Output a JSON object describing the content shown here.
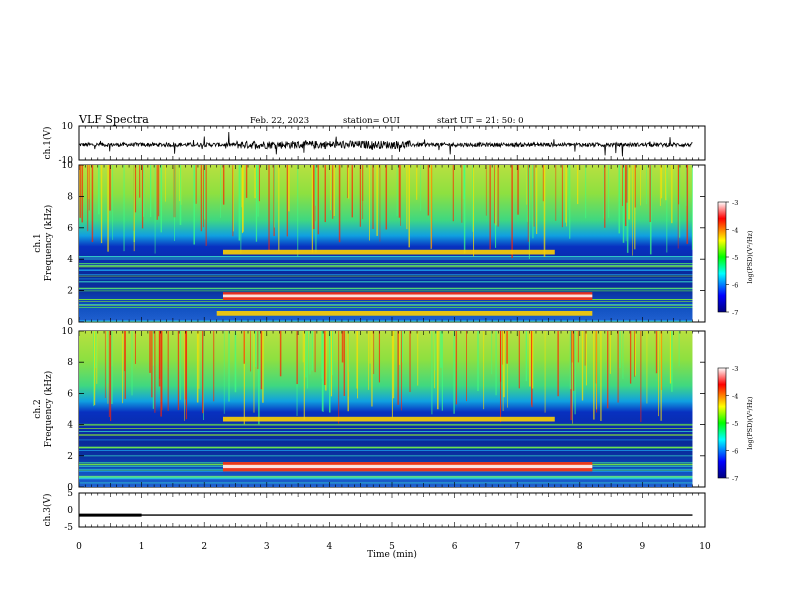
{
  "header": {
    "title": "VLF Spectra",
    "date": "Feb. 22, 2023",
    "station": "station= OUI",
    "start": "start  UT  =   21: 50: 0"
  },
  "chart_data": [
    {
      "type": "line",
      "id": "ch1-waveform",
      "ylabel": "ch.1(V)",
      "ylim": [
        -10,
        10
      ],
      "y_ticks": [
        "10",
        "-10"
      ],
      "xlim": [
        0,
        10
      ],
      "trace": "noisy waveform centered near 0 V",
      "baseline": -1
    },
    {
      "type": "heatmap",
      "id": "ch1-spectrogram",
      "ylabel_line1": "ch.1",
      "ylabel_line2": "Frequency  (kHz)",
      "ylim": [
        0,
        10
      ],
      "y_ticks": [
        "0",
        "2",
        "4",
        "6",
        "8",
        "10"
      ],
      "xlim": [
        0,
        10
      ],
      "colorbar": {
        "label": "log(PSD)(V²/Hz)",
        "ticks": [
          "-3",
          "-4",
          "-5",
          "-6",
          "-7"
        ],
        "range": [
          -7,
          -3
        ],
        "colors": [
          "#000080",
          "#0000ff",
          "#00ffff",
          "#00ff00",
          "#ffff00",
          "#ff0000",
          "#ffffff"
        ]
      },
      "features": [
        {
          "name": "data-end",
          "time_min": 9.8
        },
        {
          "name": "intense band",
          "freq_khz": [
            1.4,
            1.9
          ],
          "time_min": [
            2.3,
            8.2
          ]
        },
        {
          "name": "upper band",
          "freq_khz": [
            4.3,
            4.6
          ],
          "time_min": [
            2.3,
            7.6
          ]
        },
        {
          "name": "lower band",
          "freq_khz": [
            0.4,
            0.7
          ],
          "time_min": [
            2.2,
            8.2
          ]
        }
      ]
    },
    {
      "type": "heatmap",
      "id": "ch2-spectrogram",
      "ylabel_line1": "ch.2",
      "ylabel_line2": "Frequency  (kHz)",
      "ylim": [
        0,
        10
      ],
      "y_ticks": [
        "0",
        "2",
        "4",
        "6",
        "8",
        "10"
      ],
      "xlim": [
        0,
        10
      ],
      "colorbar": {
        "label": "log(PSD)(V²/Hz)",
        "ticks": [
          "-3",
          "-4",
          "-5",
          "-6",
          "-7"
        ],
        "range": [
          -7,
          -3
        ]
      },
      "features": [
        {
          "name": "data-end",
          "time_min": 9.8
        },
        {
          "name": "intense band",
          "freq_khz": [
            1.0,
            1.6
          ],
          "time_min": [
            2.3,
            8.2
          ]
        },
        {
          "name": "upper band",
          "freq_khz": [
            4.2,
            4.5
          ],
          "time_min": [
            2.3,
            7.6
          ]
        }
      ]
    },
    {
      "type": "line",
      "id": "ch3-trace",
      "ylabel": "ch.3(V)",
      "ylim": [
        -5,
        5
      ],
      "y_ticks": [
        "5",
        "0",
        "-5"
      ],
      "xlim": [
        0,
        10
      ],
      "xlabel": "Time  (min)",
      "x_ticks": [
        "0",
        "1",
        "2",
        "3",
        "4",
        "5",
        "6",
        "7",
        "8",
        "9",
        "10"
      ],
      "level_v": -1.5,
      "thick_segment_min": [
        0,
        1
      ]
    }
  ]
}
